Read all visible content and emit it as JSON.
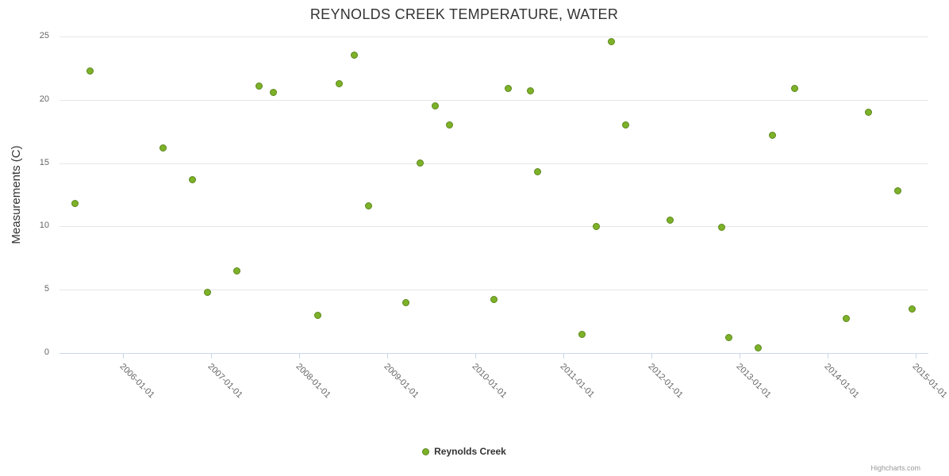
{
  "title": "REYNOLDS CREEK TEMPERATURE, WATER",
  "y_axis_title": "Measurements (C)",
  "legend": {
    "series_label": "Reynolds Creek"
  },
  "credits": "Highcharts.com",
  "colors": {
    "point_fill": "#7db228",
    "point_stroke": "#5d871e",
    "grid": "#e6e6e6",
    "axis_line": "#ccd6eb",
    "label": "#666666",
    "title": "#333333"
  },
  "chart_data": {
    "type": "scatter",
    "title": "REYNOLDS CREEK TEMPERATURE, WATER",
    "xlabel": "",
    "ylabel": "Measurements (C)",
    "grid": "horizontal",
    "legend_position": "bottom-center",
    "ylim": [
      0,
      25
    ],
    "xlim_years": [
      2005.28,
      2015.14
    ],
    "y_ticks": [
      0,
      5,
      10,
      15,
      20,
      25
    ],
    "x_ticks": [
      "2006-01-01",
      "2007-01-01",
      "2008-01-01",
      "2009-01-01",
      "2010-01-01",
      "2011-01-01",
      "2012-01-01",
      "2013-01-01",
      "2014-01-01",
      "2015-01-01"
    ],
    "series": [
      {
        "name": "Reynolds Creek",
        "points": [
          [
            "2005-06",
            11.8
          ],
          [
            "2005-08",
            22.3
          ],
          [
            "2006-06",
            16.2
          ],
          [
            "2006-10",
            13.7
          ],
          [
            "2006-12",
            4.8
          ],
          [
            "2007-04",
            6.5
          ],
          [
            "2007-07",
            21.1
          ],
          [
            "2007-09",
            20.6
          ],
          [
            "2008-03",
            3.0
          ],
          [
            "2008-06",
            21.3
          ],
          [
            "2008-08",
            23.5
          ],
          [
            "2008-10",
            11.6
          ],
          [
            "2009-03",
            4.0
          ],
          [
            "2009-05",
            15.0
          ],
          [
            "2009-07",
            19.5
          ],
          [
            "2009-09",
            18.0
          ],
          [
            "2010-03",
            4.2
          ],
          [
            "2010-05",
            20.9
          ],
          [
            "2010-08",
            20.7
          ],
          [
            "2010-09",
            14.3
          ],
          [
            "2011-03",
            1.5
          ],
          [
            "2011-05",
            10.0
          ],
          [
            "2011-07",
            24.6
          ],
          [
            "2011-09",
            18.0
          ],
          [
            "2012-03",
            10.5
          ],
          [
            "2012-10",
            9.9
          ],
          [
            "2012-11",
            1.2
          ],
          [
            "2013-03",
            0.4
          ],
          [
            "2013-05",
            17.2
          ],
          [
            "2013-08",
            20.9
          ],
          [
            "2014-03",
            2.7
          ],
          [
            "2014-06",
            19.0
          ],
          [
            "2014-10",
            12.8
          ],
          [
            "2014-12",
            3.5
          ]
        ]
      }
    ]
  }
}
